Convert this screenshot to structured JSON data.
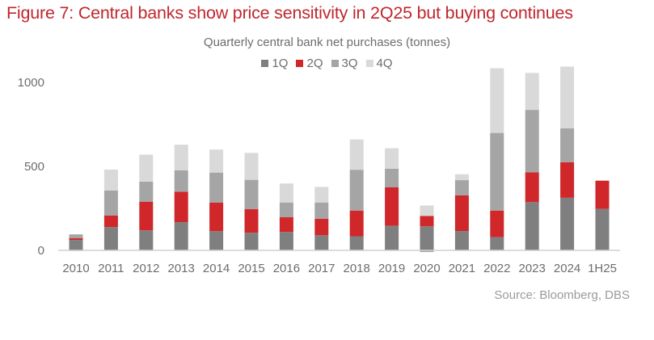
{
  "figure_title": "Figure 7: Central banks show price sensitivity in 2Q25 but buying continues",
  "source": "Source: Bloomberg, DBS",
  "colors": {
    "title": "#c0272d",
    "1Q": "#7f7f7f",
    "2Q": "#d0272a",
    "3Q": "#a5a5a5",
    "4Q": "#d9d9d9"
  },
  "chart_data": {
    "type": "bar",
    "stacked": true,
    "title": "Quarterly central bank net purchases (tonnes)",
    "xlabel": "",
    "ylabel": "",
    "ylim": [
      0,
      1100
    ],
    "yticks": [
      0,
      500,
      1000
    ],
    "grid": false,
    "legend_position": "top-center",
    "categories": [
      "2010",
      "2011",
      "2012",
      "2013",
      "2014",
      "2015",
      "2016",
      "2017",
      "2018",
      "2019",
      "2020",
      "2021",
      "2022",
      "2023",
      "2024",
      "1H25"
    ],
    "series": [
      {
        "name": "1Q",
        "color": "#7f7f7f",
        "values": [
          62,
          139,
          119,
          168,
          114,
          105,
          110,
          90,
          84,
          147,
          143,
          115,
          79,
          287,
          313,
          247
        ]
      },
      {
        "name": "2Q",
        "color": "#d0272a",
        "values": [
          10,
          69,
          171,
          181,
          171,
          140,
          87,
          98,
          153,
          228,
          62,
          212,
          158,
          178,
          212,
          168
        ]
      },
      {
        "name": "3Q",
        "color": "#a5a5a5",
        "values": [
          23,
          148,
          119,
          127,
          178,
          175,
          88,
          97,
          243,
          111,
          -10,
          91,
          462,
          371,
          201,
          null
        ]
      },
      {
        "name": "4Q",
        "color": "#d9d9d9",
        "values": [
          -5,
          125,
          161,
          153,
          137,
          160,
          113,
          93,
          180,
          122,
          62,
          35,
          385,
          220,
          368,
          null
        ]
      }
    ]
  }
}
